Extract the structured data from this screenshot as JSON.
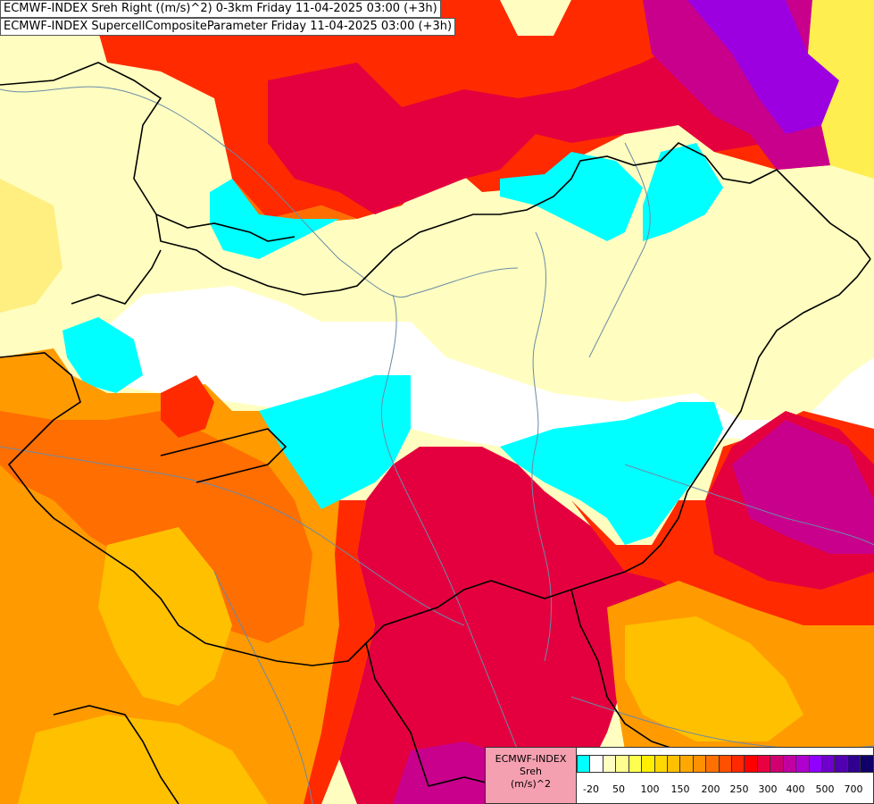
{
  "title_line1": "ECMWF-INDEX Sreh Right ((m/s)^2) 0-3km Friday 11-04-2025 03:00 (+3h)",
  "title_line2": "ECMWF-INDEX SupercellCompositeParameter Friday 11-04-2025 03:00 (+3h)",
  "legend": {
    "line1": "ECMWF-INDEX",
    "line2": "Sreh",
    "line3": "(m/s)^2",
    "colors": [
      "#00ffff",
      "#ffffff",
      "#fffec0",
      "#ffff90",
      "#ffff50",
      "#ffee00",
      "#ffd800",
      "#ffc000",
      "#ffa800",
      "#ff9000",
      "#ff7000",
      "#ff5000",
      "#ff2800",
      "#ff0000",
      "#e80040",
      "#d00070",
      "#c000a0",
      "#b000d0",
      "#9000ff",
      "#7000d0",
      "#5000b0",
      "#300090",
      "#10006a"
    ],
    "ticks": [
      "-20",
      "50",
      "100",
      "150",
      "200",
      "250",
      "300",
      "400",
      "500",
      "700"
    ]
  },
  "colors": {
    "cyan": "#00ffff",
    "white": "#ffffff",
    "pale_yellow": "#fffec0",
    "yellow": "#ffd800",
    "orange": "#ff9a00",
    "dark_orange": "#ff6e00",
    "red": "#ff2a00",
    "crimson": "#e4003e",
    "magenta": "#c8008c",
    "purple": "#9c00e0"
  }
}
